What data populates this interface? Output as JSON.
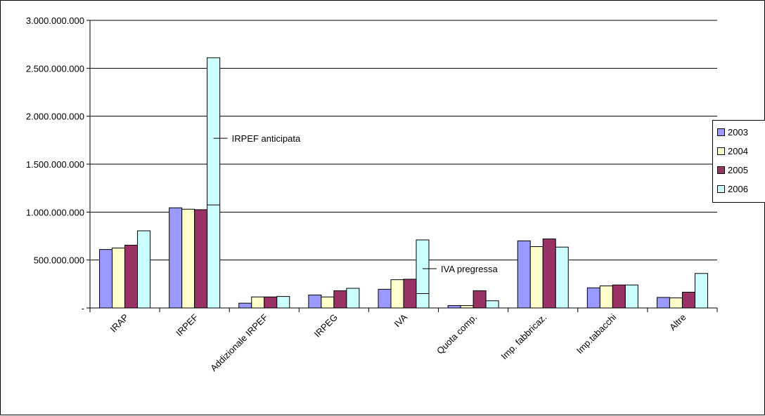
{
  "chart_data": {
    "type": "bar",
    "categories": [
      "IRAP",
      "IRPEF",
      "Addizionale IRPEF",
      "IRPEG",
      "IVA",
      "Quota comp.",
      "Imp. fabbricaz.",
      "Imp.tabacchi",
      "Altre"
    ],
    "series": [
      {
        "name": "2003",
        "color": "#9999ff",
        "values": [
          610000000,
          1045000000,
          50000000,
          135000000,
          195000000,
          25000000,
          700000000,
          210000000,
          110000000
        ]
      },
      {
        "name": "2004",
        "color": "#ffffcc",
        "values": [
          625000000,
          1030000000,
          115000000,
          115000000,
          295000000,
          25000000,
          640000000,
          230000000,
          105000000
        ]
      },
      {
        "name": "2005",
        "color": "#993366",
        "values": [
          655000000,
          1025000000,
          115000000,
          180000000,
          300000000,
          180000000,
          720000000,
          240000000,
          165000000
        ]
      },
      {
        "name": "2006",
        "color": "#ccffff",
        "values": [
          805000000,
          2610000000,
          120000000,
          205000000,
          710000000,
          75000000,
          635000000,
          240000000,
          360000000
        ]
      }
    ],
    "ylim": [
      0,
      3000000000
    ],
    "yticks": [
      0,
      500000000,
      1000000000,
      1500000000,
      2000000000,
      2500000000,
      3000000000
    ],
    "ytick_labels": [
      "-",
      "500.000.000",
      "1.000.000.000",
      "1.500.000.000",
      "2.000.000.000",
      "2.500.000.000",
      "3.000.000.000"
    ],
    "grid": true,
    "legend_position": "right",
    "segment_markers": [
      {
        "category_index": 1,
        "series_index": 3,
        "value": 1075000000
      },
      {
        "category_index": 4,
        "series_index": 3,
        "value": 150000000
      }
    ],
    "annotations": [
      {
        "text": "IRPEF anticipata",
        "category_index": 1,
        "series_index": 3,
        "value": 1770000000
      },
      {
        "text": "IVA pregressa",
        "category_index": 4,
        "series_index": 3,
        "value": 410000000
      }
    ]
  },
  "legend": {
    "items": [
      "2003",
      "2004",
      "2005",
      "2006"
    ]
  }
}
